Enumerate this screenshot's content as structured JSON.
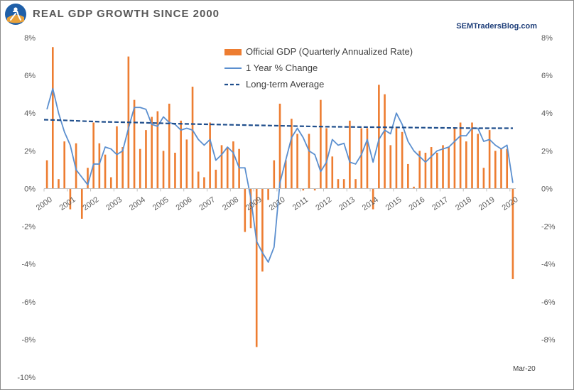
{
  "title": "REAL GDP GROWTH SINCE 2000",
  "source": "SEMTradersBlog.com",
  "colors": {
    "bars": "#ed7d31",
    "yoy": "#5b8fcf",
    "avg": "#1f4e8c",
    "axis": "#595959"
  },
  "chart_data": {
    "type": "bar",
    "title": "REAL GDP GROWTH SINCE 2000",
    "ylim": [
      -10,
      8
    ],
    "yticks": [
      -10,
      -8,
      -6,
      -4,
      -2,
      0,
      2,
      4,
      6,
      8
    ],
    "ytick_labels": [
      "-10%",
      "-8%",
      "-6%",
      "-4%",
      "-2%",
      "0%",
      "2%",
      "4%",
      "6%",
      "8%"
    ],
    "right_ytick_labels": [
      "",
      "-8%",
      "-6%",
      "-4%",
      "-2%",
      "0%",
      "2%",
      "4%",
      "6%",
      "8%"
    ],
    "x_labels": [
      "2000",
      "2001",
      "2002",
      "2003",
      "2004",
      "2005",
      "2006",
      "2007",
      "2008",
      "2009",
      "2010",
      "2011",
      "2012",
      "2013",
      "2014",
      "2015",
      "2016",
      "2017",
      "2018",
      "2019",
      "2020"
    ],
    "annotation": "Mar-20",
    "legend": [
      "Official GDP (Quarterly Annualized Rate)",
      "1 Year % Change",
      "Long-term Average"
    ],
    "series": [
      {
        "name": "Official GDP (Quarterly Annualized Rate)",
        "kind": "bar",
        "values": [
          1.5,
          7.5,
          0.5,
          2.5,
          -1.1,
          2.4,
          -1.6,
          1.1,
          3.5,
          2.4,
          1.8,
          0.6,
          3.3,
          2.2,
          7.0,
          4.7,
          2.1,
          3.1,
          3.8,
          4.1,
          2.0,
          4.5,
          1.9,
          3.6,
          2.6,
          5.4,
          0.9,
          0.6,
          3.5,
          1.0,
          2.3,
          2.2,
          2.5,
          2.1,
          -2.3,
          -2.1,
          -8.4,
          -4.4,
          -0.6,
          1.5,
          4.5,
          1.5,
          3.7,
          2.9,
          -0.1,
          2.9,
          -0.1,
          4.7,
          3.2,
          1.7,
          0.5,
          0.5,
          3.6,
          0.5,
          3.2,
          3.2,
          -1.1,
          5.5,
          5.0,
          2.3,
          3.2,
          3.0,
          1.3,
          0.1,
          2.0,
          1.9,
          2.2,
          1.9,
          2.3,
          2.2,
          3.2,
          3.5,
          2.5,
          3.5,
          2.9,
          1.1,
          3.1,
          2.0,
          2.1,
          2.1,
          -4.8
        ]
      },
      {
        "name": "1 Year % Change",
        "kind": "line",
        "values": [
          4.2,
          5.3,
          4.0,
          3.0,
          2.3,
          1.0,
          0.6,
          0.2,
          1.3,
          1.3,
          2.2,
          2.1,
          1.8,
          2.0,
          3.2,
          4.3,
          4.3,
          4.2,
          3.4,
          3.3,
          3.8,
          3.5,
          3.4,
          3.1,
          3.2,
          3.1,
          2.6,
          2.3,
          2.6,
          1.5,
          1.8,
          2.2,
          1.9,
          1.1,
          1.1,
          -0.5,
          -2.8,
          -3.4,
          -3.9,
          -3.1,
          0.3,
          1.5,
          2.7,
          3.2,
          2.7,
          2.0,
          1.8,
          0.9,
          1.4,
          2.6,
          2.3,
          2.4,
          1.4,
          1.3,
          1.8,
          2.6,
          1.4,
          2.6,
          3.1,
          2.9,
          4.0,
          3.4,
          2.5,
          2.0,
          1.7,
          1.4,
          1.7,
          2.0,
          2.1,
          2.2,
          2.5,
          2.8,
          2.8,
          3.2,
          3.2,
          2.5,
          2.6,
          2.3,
          2.1,
          2.3,
          0.3
        ]
      },
      {
        "name": "Long-term Average",
        "kind": "line-dashed",
        "values": [
          3.65,
          3.62,
          3.58,
          3.54,
          3.52,
          3.5,
          3.47,
          3.44,
          3.42,
          3.4,
          3.38,
          3.36,
          3.34,
          3.32,
          3.3,
          3.28,
          3.27,
          3.26,
          3.25,
          3.24,
          3.23,
          3.22,
          3.21,
          3.2,
          3.2,
          3.2
        ]
      }
    ]
  }
}
